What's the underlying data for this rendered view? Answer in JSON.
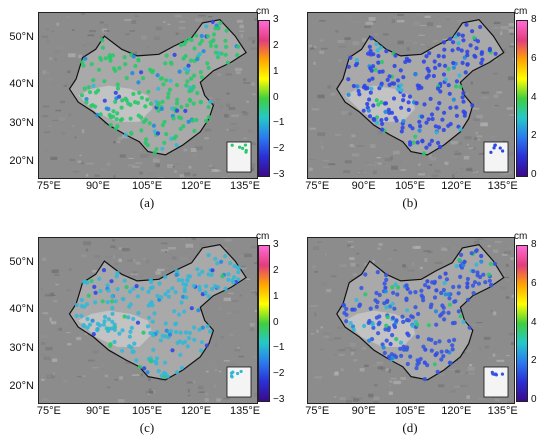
{
  "figure": {
    "panels": [
      {
        "id": "a",
        "caption": "(a)",
        "colorbar": {
          "unit": "cm",
          "ticks": [
            "3",
            "2",
            "1",
            "0",
            "−1",
            "−2",
            "−3"
          ],
          "colormap": "jet-pink",
          "range": [
            -3,
            3
          ]
        },
        "x_ticks": [
          "75°E",
          "90°E",
          "105°E",
          "120°E",
          "135°E"
        ],
        "y_ticks": [
          "50°N",
          "40°N",
          "30°N",
          "20°N"
        ],
        "dominant_station_color": "#29c96a"
      },
      {
        "id": "b",
        "caption": "(b)",
        "colorbar": {
          "unit": "cm",
          "ticks": [
            "8",
            "6",
            "4",
            "2",
            "0"
          ],
          "colormap": "jet-pink",
          "range": [
            0,
            8
          ]
        },
        "x_ticks": [
          "75°E",
          "90°E",
          "105°E",
          "120°E",
          "135°E"
        ],
        "y_ticks": [],
        "dominant_station_color": "#2f46e6"
      },
      {
        "id": "c",
        "caption": "(c)",
        "colorbar": {
          "unit": "cm",
          "ticks": [
            "3",
            "2",
            "1",
            "0",
            "−1",
            "−2",
            "−3"
          ],
          "colormap": "jet-pink",
          "range": [
            -3,
            3
          ]
        },
        "x_ticks": [
          "75°E",
          "90°E",
          "105°E",
          "120°E",
          "135°E"
        ],
        "y_ticks": [
          "50°N",
          "40°N",
          "30°N",
          "20°N"
        ],
        "dominant_station_color": "#34b7d6"
      },
      {
        "id": "d",
        "caption": "(d)",
        "colorbar": {
          "unit": "cm",
          "ticks": [
            "8",
            "6",
            "4",
            "2",
            "0"
          ],
          "colormap": "jet-pink",
          "range": [
            0,
            8
          ]
        },
        "x_ticks": [
          "75°E",
          "90°E",
          "105°E",
          "120°E",
          "135°E"
        ],
        "y_ticks": [],
        "dominant_station_color": "#3555e0"
      }
    ]
  },
  "colors": {
    "map_background": "#8c8c8c",
    "plateau": "#c9c9c9",
    "border": "#111111"
  }
}
